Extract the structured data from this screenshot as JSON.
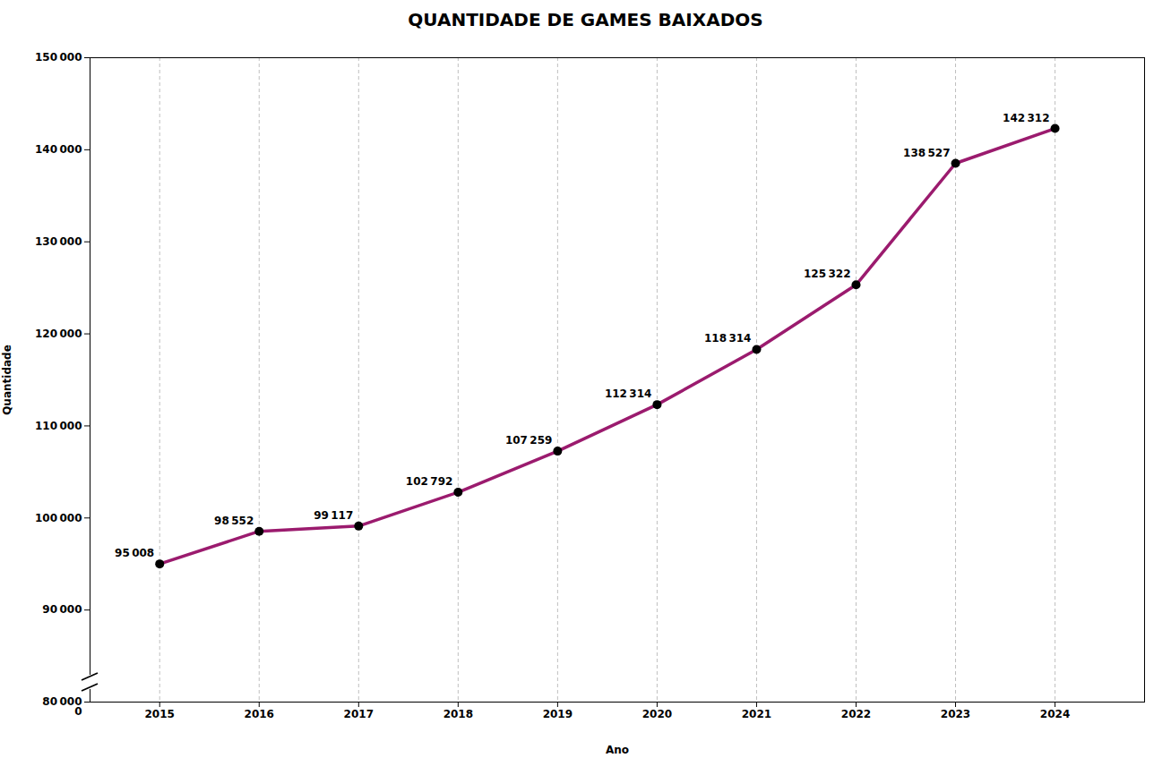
{
  "chart_data": {
    "type": "line",
    "title": "QUANTIDADE DE GAMES BAIXADOS",
    "xlabel": "Ano",
    "ylabel": "Quantidade",
    "x": [
      2015,
      2016,
      2017,
      2018,
      2019,
      2020,
      2021,
      2022,
      2023,
      2024
    ],
    "values": [
      95008,
      98552,
      99117,
      102792,
      107259,
      112314,
      118314,
      125322,
      138527,
      142312
    ],
    "value_labels": [
      "95 008",
      "98 552",
      "99 117",
      "102 792",
      "107 259",
      "112 314",
      "118 314",
      "125 322",
      "138 527",
      "142 312"
    ],
    "data_labels": true,
    "color": "#9B1B6E",
    "marker": "o",
    "xlim": [
      2014.3,
      2024.9
    ],
    "xticks": [
      2015,
      2016,
      2017,
      2018,
      2019,
      2020,
      2021,
      2022,
      2023,
      2024
    ],
    "ylim": [
      80000,
      150000
    ],
    "yticks": [
      {
        "value": 80000,
        "label": "80 000"
      },
      {
        "value": 90000,
        "label": "90 000"
      },
      {
        "value": 100000,
        "label": "100 000"
      },
      {
        "value": 110000,
        "label": "110 000"
      },
      {
        "value": 120000,
        "label": "120 000"
      },
      {
        "value": 130000,
        "label": "130 000"
      },
      {
        "value": 140000,
        "label": "140 000"
      },
      {
        "value": 150000,
        "label": "150 000"
      }
    ],
    "grid": "x",
    "annotations": [
      {
        "text": "0"
      }
    ]
  }
}
